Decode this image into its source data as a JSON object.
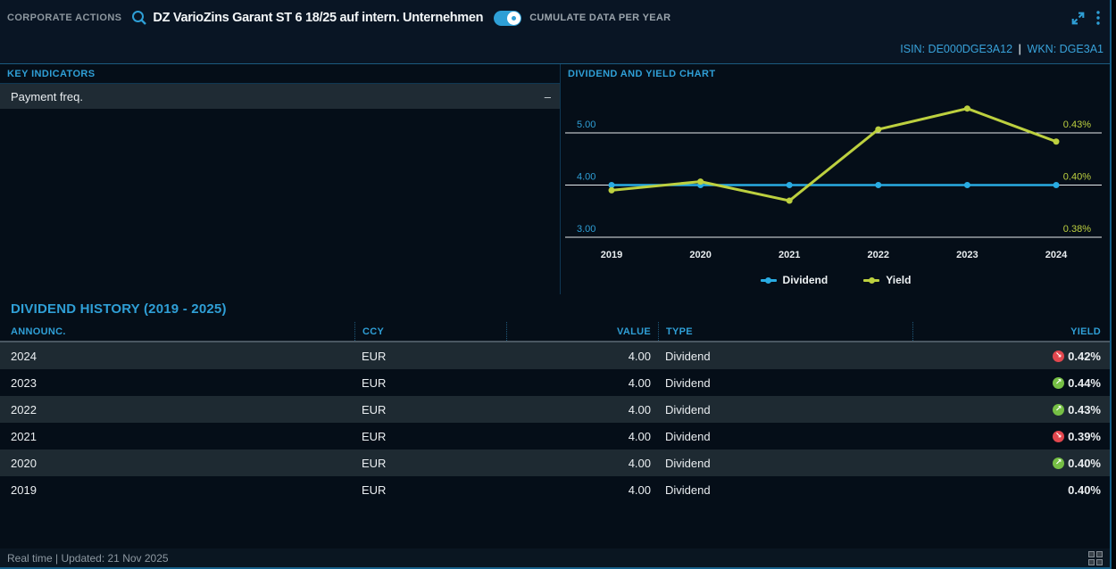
{
  "topbar": {
    "app_label": "CORPORATE ACTIONS",
    "instrument": "DZ VarioZins Garant ST 6 18/25 auf intern. Unternehmen",
    "toggle_label": "CUMULATE DATA PER YEAR",
    "toggle_on": true
  },
  "instrument_info": {
    "isin_label": "ISIN:",
    "isin": "DE000DGE3A12",
    "separator": "|",
    "wkn_label": "WKN:",
    "wkn": "DGE3A1"
  },
  "key_indicators": {
    "title": "KEY INDICATORS",
    "rows": [
      {
        "label": "Payment freq.",
        "value": "–"
      }
    ]
  },
  "chart_panel_title": "DIVIDEND AND YIELD CHART",
  "chart_data": {
    "type": "line",
    "title": "DIVIDEND AND YIELD CHART",
    "categories": [
      "2019",
      "2020",
      "2021",
      "2022",
      "2023",
      "2024"
    ],
    "series": [
      {
        "name": "Dividend",
        "axis": "left",
        "color": "#29abe2",
        "values": [
          4.0,
          4.0,
          4.0,
          4.0,
          4.0,
          4.0
        ]
      },
      {
        "name": "Yield",
        "axis": "right",
        "color": "#bdd03f",
        "values": [
          0.398,
          0.402,
          0.394,
          0.432,
          0.444,
          0.425
        ]
      }
    ],
    "left_axis": {
      "ticks": [
        5.0,
        4.0,
        3.0
      ],
      "labels": [
        "5.00",
        "4.00",
        "3.00"
      ]
    },
    "right_axis": {
      "ticks": [
        0.43,
        0.4,
        0.38
      ],
      "labels": [
        "0.43%",
        "0.40%",
        "0.38%"
      ]
    },
    "grid": true,
    "legend_position": "bottom"
  },
  "history": {
    "title": "DIVIDEND HISTORY (2019 - 2025)",
    "columns": [
      "ANNOUNC.",
      "CCY",
      "VALUE",
      "TYPE",
      "YIELD"
    ],
    "rows": [
      {
        "announc": "2024",
        "ccy": "EUR",
        "value": "4.00",
        "type": "Dividend",
        "yield": "0.42%",
        "trend": "down"
      },
      {
        "announc": "2023",
        "ccy": "EUR",
        "value": "4.00",
        "type": "Dividend",
        "yield": "0.44%",
        "trend": "up"
      },
      {
        "announc": "2022",
        "ccy": "EUR",
        "value": "4.00",
        "type": "Dividend",
        "yield": "0.43%",
        "trend": "up"
      },
      {
        "announc": "2021",
        "ccy": "EUR",
        "value": "4.00",
        "type": "Dividend",
        "yield": "0.39%",
        "trend": "down"
      },
      {
        "announc": "2020",
        "ccy": "EUR",
        "value": "4.00",
        "type": "Dividend",
        "yield": "0.40%",
        "trend": "up"
      },
      {
        "announc": "2019",
        "ccy": "EUR",
        "value": "4.00",
        "type": "Dividend",
        "yield": "0.40%",
        "trend": "none"
      }
    ]
  },
  "footer": {
    "status": "Real time | Updated: 21 Nov 2025"
  },
  "colors": {
    "accent": "#2f9fd6",
    "dividend_line": "#29abe2",
    "yield_line": "#bdd03f",
    "trend_up": "#76bf45",
    "trend_down": "#e2474e",
    "gridline": "#e6eaed",
    "x_label": "#e9edf0"
  },
  "icons": {
    "search": "search-icon",
    "expand": "expand-icon",
    "kebab": "kebab-menu-icon",
    "grid": "grid-layout-icon",
    "trend_up_glyph": "↗",
    "trend_down_glyph": "↘"
  }
}
